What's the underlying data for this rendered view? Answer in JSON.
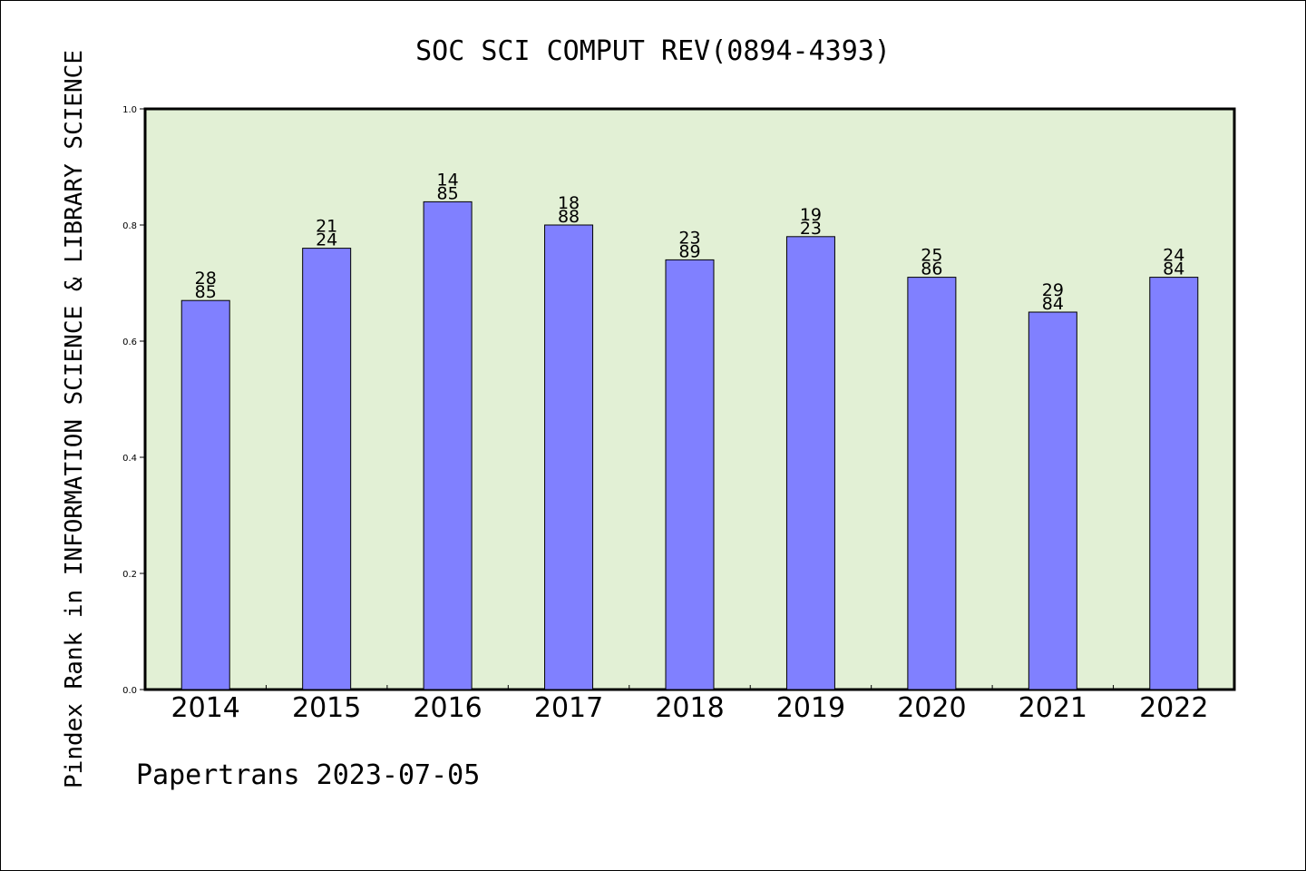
{
  "chart_data": {
    "type": "bar",
    "title": "SOC SCI COMPUT REV(0894-4393)",
    "xlabel": "",
    "ylabel": "Pindex Rank in INFORMATION SCIENCE & LIBRARY SCIENCE",
    "footer": "Papertrans 2023-07-05",
    "categories": [
      "2014",
      "2015",
      "2016",
      "2017",
      "2018",
      "2019",
      "2020",
      "2021",
      "2022"
    ],
    "values": [
      0.67,
      0.76,
      0.84,
      0.8,
      0.74,
      0.78,
      0.71,
      0.65,
      0.71
    ],
    "labels_top": [
      "28",
      "21",
      "14",
      "18",
      "23",
      "19",
      "25",
      "29",
      "24"
    ],
    "labels_bottom": [
      "85",
      "24",
      "85",
      "88",
      "89",
      "23",
      "86",
      "84",
      "84"
    ],
    "ylim": [
      0,
      1.0
    ],
    "yticks": [
      "0.0",
      "0.2",
      "0.4",
      "0.6",
      "0.8",
      "1.0"
    ],
    "grid": false,
    "colors": {
      "plot_background": "#e2f0d5",
      "bar_fill": "#8080ff",
      "bar_stroke": "#000000"
    }
  }
}
